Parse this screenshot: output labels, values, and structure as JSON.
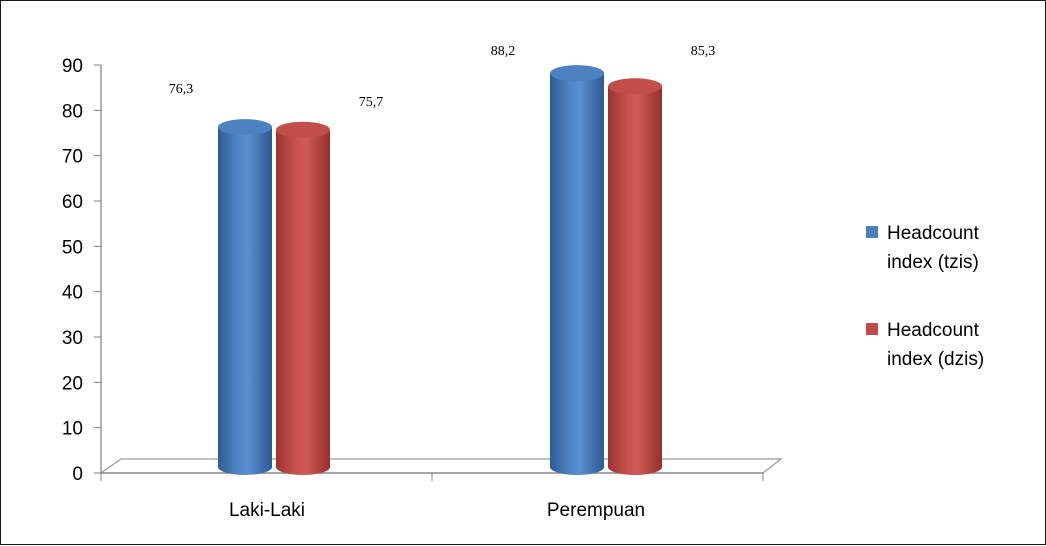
{
  "chart_data": {
    "type": "bar",
    "categories": [
      "Laki-Laki",
      "Perempuan"
    ],
    "series": [
      {
        "name": "Headcount index (tzis)",
        "values": [
          76.3,
          88.2
        ],
        "labels": [
          "76,3",
          "88,2"
        ],
        "color": "#4A7EBB"
      },
      {
        "name": "Headcount index (dzis)",
        "values": [
          75.7,
          85.3
        ],
        "labels": [
          "75,7",
          "85,3"
        ],
        "color": "#BE4B48"
      }
    ],
    "yticks": [
      "0",
      "10",
      "20",
      "30",
      "40",
      "50",
      "60",
      "70",
      "80",
      "90"
    ],
    "ylim": [
      0,
      90
    ],
    "grid": false,
    "legend": "right",
    "title": "",
    "xlabel": "",
    "ylabel": ""
  }
}
